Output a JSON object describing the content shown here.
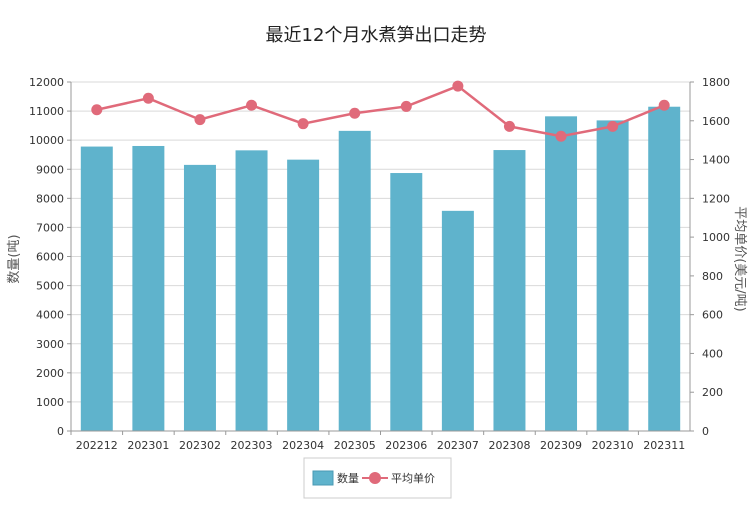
{
  "chart_data": {
    "type": "bar",
    "title": "最近12个月水煮笋出口走势",
    "categories": [
      "202212",
      "202301",
      "202302",
      "202303",
      "202304",
      "202305",
      "202306",
      "202307",
      "202308",
      "202309",
      "202310",
      "202311"
    ],
    "series": [
      {
        "name": "数量",
        "type": "bar",
        "axis": "left",
        "color": "#5fb3cc",
        "values": [
          9780,
          9800,
          9150,
          9650,
          9330,
          10320,
          8870,
          7570,
          9660,
          10820,
          10680,
          11150
        ]
      },
      {
        "name": "平均单价",
        "type": "line",
        "axis": "right",
        "color": "#e06a7a",
        "values": [
          1657,
          1716,
          1606,
          1680,
          1585,
          1639,
          1674,
          1779,
          1571,
          1520,
          1571,
          1680
        ]
      }
    ],
    "ylabel_left": "数量(吨)",
    "ylabel_right": "平均单价(美元/吨)",
    "ylim_left": [
      0,
      12000
    ],
    "ylim_right": [
      0,
      1800
    ],
    "yticks_left": [
      0,
      1000,
      2000,
      3000,
      4000,
      5000,
      6000,
      7000,
      8000,
      9000,
      10000,
      11000,
      12000
    ],
    "yticks_right": [
      0,
      200,
      400,
      600,
      800,
      1000,
      1200,
      1400,
      1600,
      1800
    ],
    "grid": true,
    "legend_position": "bottom-center"
  }
}
